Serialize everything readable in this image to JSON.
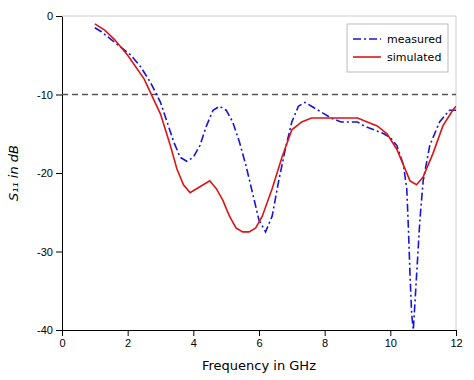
{
  "chart_data": {
    "type": "line",
    "xlabel": "Frequency in GHz",
    "ylabel": "S₁₁ in dB",
    "xlim": [
      0,
      12
    ],
    "ylim": [
      -40,
      0
    ],
    "xticks": [
      0,
      2,
      4,
      6,
      8,
      10,
      12
    ],
    "yticks": [
      0,
      -10,
      -20,
      -30,
      -40
    ],
    "grid": false,
    "legend": "upper right",
    "reference_lines": [
      {
        "y": -10,
        "color": "#555555",
        "line_style": "dashed"
      }
    ],
    "series": [
      {
        "name": "measured",
        "color": "#1515dd",
        "line_style": "dashdot",
        "x": [
          1.0,
          1.2,
          1.5,
          1.8,
          2.1,
          2.4,
          2.7,
          3.0,
          3.2,
          3.4,
          3.6,
          3.8,
          4.0,
          4.2,
          4.4,
          4.6,
          4.8,
          5.0,
          5.2,
          5.4,
          5.6,
          5.8,
          6.0,
          6.2,
          6.4,
          6.6,
          6.8,
          7.0,
          7.2,
          7.4,
          7.6,
          7.8,
          8.0,
          8.2,
          8.5,
          8.8,
          9.0,
          9.2,
          9.5,
          9.8,
          10.0,
          10.2,
          10.4,
          10.5,
          10.55,
          10.6,
          10.65,
          10.7,
          10.8,
          10.9,
          11.0,
          11.2,
          11.5,
          11.8,
          12.0
        ],
        "values": [
          -1.5,
          -2.0,
          -3.0,
          -4.0,
          -5.0,
          -6.5,
          -8.5,
          -11.0,
          -13.5,
          -16.0,
          -18.0,
          -18.5,
          -18.0,
          -16.5,
          -14.0,
          -12.0,
          -11.5,
          -12.0,
          -13.5,
          -16.0,
          -19.0,
          -22.5,
          -26.0,
          -27.5,
          -25.5,
          -21.0,
          -17.0,
          -13.5,
          -11.5,
          -11.0,
          -11.5,
          -12.0,
          -12.5,
          -13.0,
          -13.5,
          -13.5,
          -13.5,
          -14.0,
          -14.5,
          -15.0,
          -15.5,
          -16.5,
          -19.0,
          -22.0,
          -27.0,
          -33.0,
          -38.0,
          -40.0,
          -33.0,
          -26.0,
          -21.0,
          -16.5,
          -13.5,
          -12.0,
          -12.0
        ]
      },
      {
        "name": "simulated",
        "color": "#dd1515",
        "line_style": "solid",
        "x": [
          1.0,
          1.3,
          1.6,
          2.0,
          2.5,
          3.0,
          3.3,
          3.5,
          3.7,
          3.9,
          4.1,
          4.3,
          4.5,
          4.7,
          4.9,
          5.1,
          5.3,
          5.5,
          5.7,
          5.9,
          6.1,
          6.4,
          6.7,
          7.0,
          7.3,
          7.6,
          7.9,
          8.2,
          8.5,
          8.8,
          9.0,
          9.3,
          9.6,
          9.9,
          10.2,
          10.4,
          10.6,
          10.8,
          11.0,
          11.3,
          11.6,
          11.9,
          12.0
        ],
        "values": [
          -1.0,
          -1.8,
          -3.0,
          -5.0,
          -8.0,
          -12.5,
          -16.5,
          -19.5,
          -21.5,
          -22.5,
          -22.0,
          -21.5,
          -21.0,
          -22.0,
          -23.5,
          -25.5,
          -27.0,
          -27.5,
          -27.5,
          -27.0,
          -25.5,
          -22.0,
          -18.0,
          -14.5,
          -13.5,
          -13.0,
          -13.0,
          -13.0,
          -13.0,
          -13.0,
          -13.0,
          -13.5,
          -14.0,
          -15.0,
          -17.0,
          -19.0,
          -21.0,
          -21.5,
          -20.5,
          -17.5,
          -14.0,
          -12.0,
          -11.5
        ]
      }
    ]
  }
}
